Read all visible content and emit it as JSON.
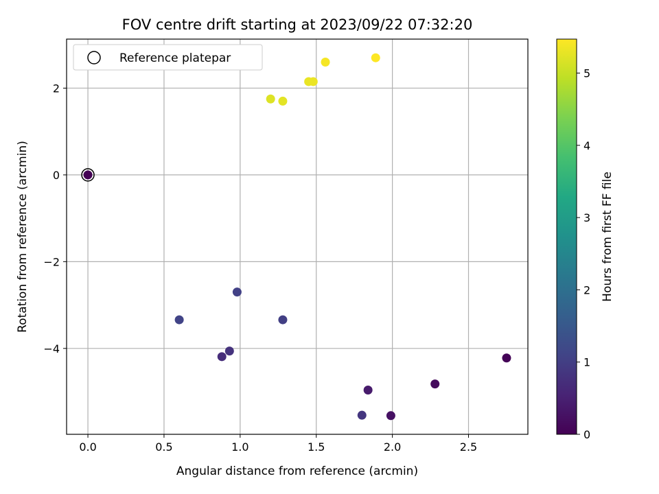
{
  "chart_data": {
    "type": "scatter",
    "title": "FOV centre drift starting at 2023/09/22 07:32:20",
    "xlabel": "Angular distance from reference (arcmin)",
    "ylabel": "Rotation from reference (arcmin)",
    "xlim": [
      -0.14,
      2.89
    ],
    "ylim": [
      -5.98,
      3.13
    ],
    "xticks": [
      0.0,
      0.5,
      1.0,
      1.5,
      2.0,
      2.5
    ],
    "xtick_labels": [
      "0.0",
      "0.5",
      "1.0",
      "1.5",
      "2.0",
      "2.5"
    ],
    "yticks": [
      2,
      0,
      -2,
      -4
    ],
    "ytick_labels": [
      "2",
      "0",
      "−2",
      "−4"
    ],
    "grid": true,
    "legend": {
      "placement": "top-left",
      "label": "Reference platepar",
      "marker": "open-circle"
    },
    "reference_point": {
      "x": 0.0,
      "y": 0.0
    },
    "colorbar": {
      "label": "Hours from first FF file",
      "colormap": "viridis",
      "range": [
        0,
        5.47
      ],
      "ticks": [
        0,
        1,
        2,
        3,
        4,
        5
      ],
      "tick_labels": [
        "0",
        "1",
        "2",
        "3",
        "4",
        "5"
      ]
    },
    "points": [
      {
        "x": 0.0,
        "y": 0.0,
        "hours": 0.0
      },
      {
        "x": 2.75,
        "y": -4.22,
        "hours": 0.05
      },
      {
        "x": 2.28,
        "y": -4.82,
        "hours": 0.15
      },
      {
        "x": 1.99,
        "y": -5.55,
        "hours": 0.25
      },
      {
        "x": 1.84,
        "y": -4.96,
        "hours": 0.4
      },
      {
        "x": 1.8,
        "y": -5.54,
        "hours": 0.85
      },
      {
        "x": 0.88,
        "y": -4.19,
        "hours": 0.7
      },
      {
        "x": 0.93,
        "y": -4.06,
        "hours": 0.8
      },
      {
        "x": 0.98,
        "y": -2.7,
        "hours": 1.05
      },
      {
        "x": 0.6,
        "y": -3.34,
        "hours": 1.1
      },
      {
        "x": 1.28,
        "y": -3.34,
        "hours": 1.0
      },
      {
        "x": 1.2,
        "y": 1.75,
        "hours": 5.2
      },
      {
        "x": 1.28,
        "y": 1.7,
        "hours": 5.25
      },
      {
        "x": 1.45,
        "y": 2.15,
        "hours": 5.3
      },
      {
        "x": 1.48,
        "y": 2.15,
        "hours": 5.32
      },
      {
        "x": 1.56,
        "y": 2.6,
        "hours": 5.4
      },
      {
        "x": 1.89,
        "y": 2.7,
        "hours": 5.47
      }
    ]
  }
}
